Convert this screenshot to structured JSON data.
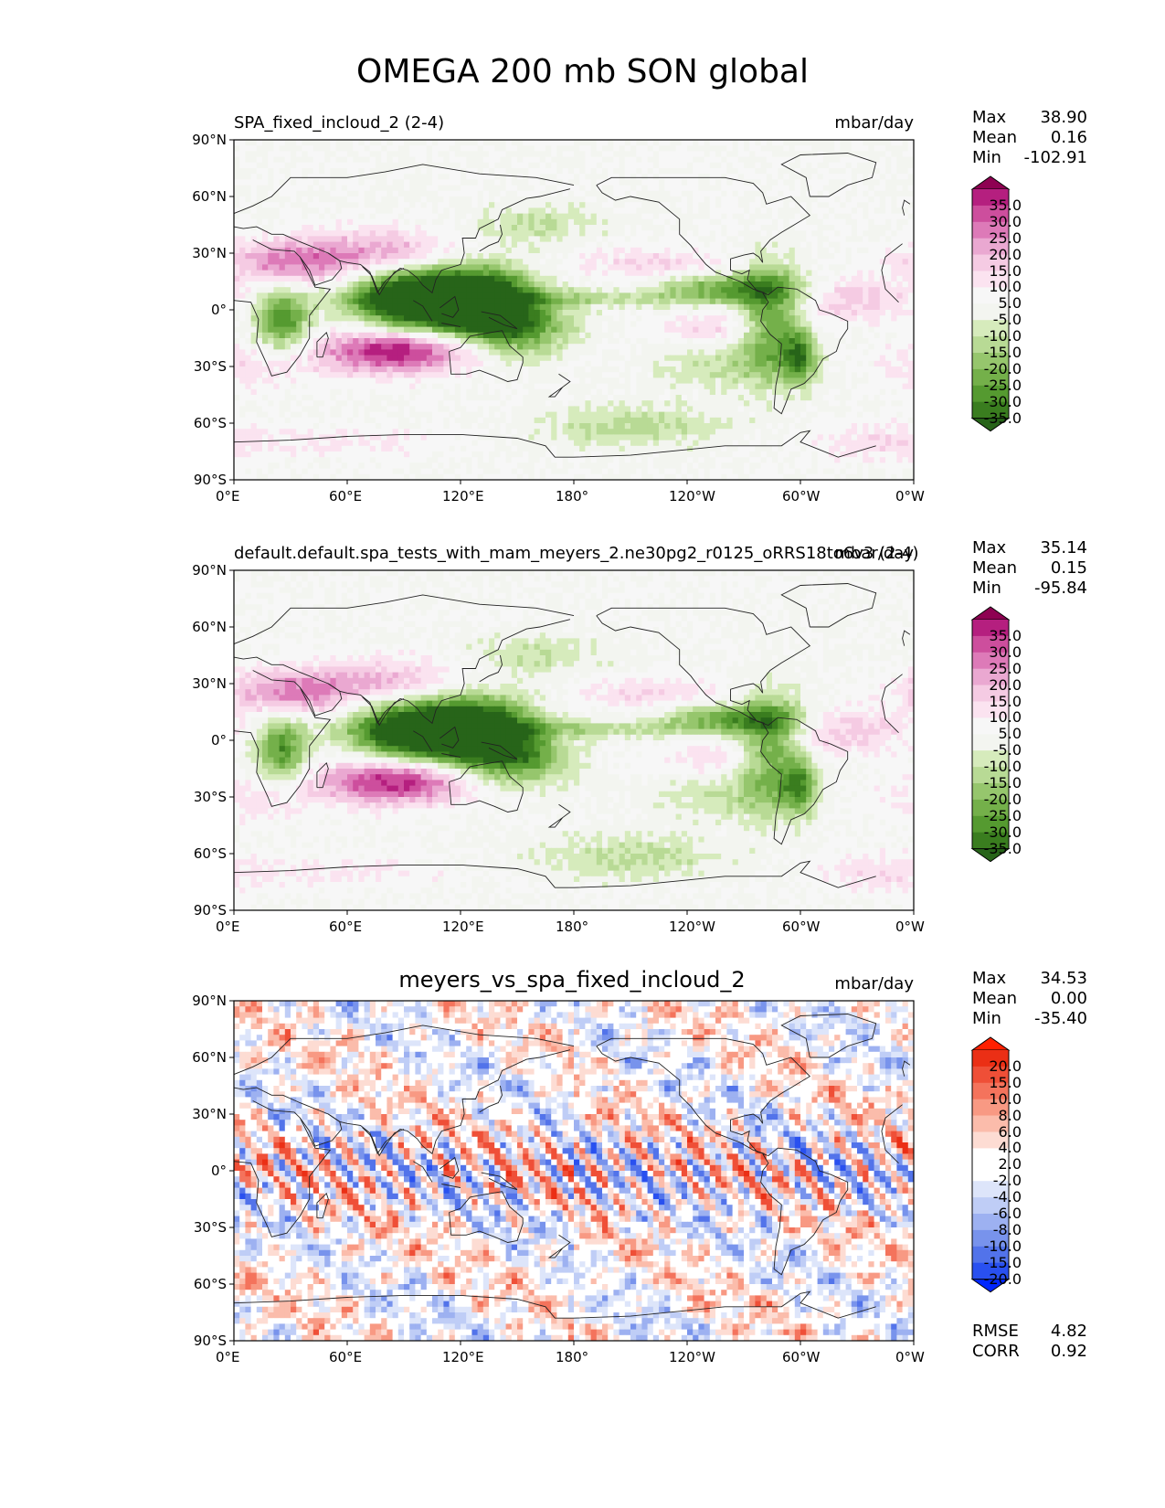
{
  "figure": {
    "title": "OMEGA 200 mb SON global"
  },
  "axes": {
    "lat_ticks": [
      "90°N",
      "60°N",
      "30°N",
      "0°",
      "30°S",
      "60°S",
      "90°S"
    ],
    "lon_ticks": [
      "0°E",
      "60°E",
      "120°E",
      "180°",
      "120°W",
      "60°W",
      "0°W"
    ]
  },
  "panels": [
    {
      "title_left": "SPA_fixed_incloud_2 (2-4)",
      "title_right": "mbar/day",
      "stats": {
        "max_label": "Max",
        "max": "38.90",
        "mean_label": "Mean",
        "mean": "0.16",
        "min_label": "Min",
        "min": "-102.91"
      },
      "colorbar_ticks": [
        "35.0",
        "30.0",
        "25.0",
        "20.0",
        "15.0",
        "10.0",
        "5.0",
        "-5.0",
        "-10.0",
        "-15.0",
        "-20.0",
        "-25.0",
        "-30.0",
        "-35.0"
      ]
    },
    {
      "title_left": "default.default.spa_tests_with_mam_meyers_2.ne30pg2_r0125_oRRS18to6v3 (2-4)",
      "title_right": "mbar/day",
      "stats": {
        "max_label": "Max",
        "max": "35.14",
        "mean_label": "Mean",
        "mean": "0.15",
        "min_label": "Min",
        "min": "-95.84"
      },
      "colorbar_ticks": [
        "35.0",
        "30.0",
        "25.0",
        "20.0",
        "15.0",
        "10.0",
        "5.0",
        "-5.0",
        "-10.0",
        "-15.0",
        "-20.0",
        "-25.0",
        "-30.0",
        "-35.0"
      ]
    },
    {
      "title_center": "meyers_vs_spa_fixed_incloud_2",
      "title_right": "mbar/day",
      "stats": {
        "max_label": "Max",
        "max": "34.53",
        "mean_label": "Mean",
        "mean": "0.00",
        "min_label": "Min",
        "min": "-35.40"
      },
      "colorbar_ticks": [
        "20.0",
        "15.0",
        "10.0",
        "8.0",
        "6.0",
        "4.0",
        "2.0",
        "-2.0",
        "-4.0",
        "-6.0",
        "-8.0",
        "-10.0",
        "-15.0",
        "-20.0"
      ],
      "metrics": {
        "rmse_label": "RMSE",
        "rmse": "4.82",
        "corr_label": "CORR",
        "corr": "0.92"
      }
    }
  ],
  "colors": {
    "pinkgreen": [
      "#276419",
      "#3a7d1f",
      "#559a30",
      "#74b04a",
      "#96c66d",
      "#b8da95",
      "#d6ebbc",
      "#f3f5f0",
      "#f7f7f7",
      "#fbe3f0",
      "#f5cbe3",
      "#eaa8d1",
      "#dd7ab8",
      "#cd4e9d",
      "#b51f7f",
      "#8e0152"
    ],
    "bwr": [
      "#0026ff",
      "#2950f0",
      "#5273ea",
      "#7893ec",
      "#9db1f1",
      "#bfcdf6",
      "#dde5fa",
      "#ffffff",
      "#ffffff",
      "#fddcd3",
      "#fbbcab",
      "#f89983",
      "#f4735c",
      "#ef4f37",
      "#eb2f15",
      "#ff2000"
    ]
  }
}
